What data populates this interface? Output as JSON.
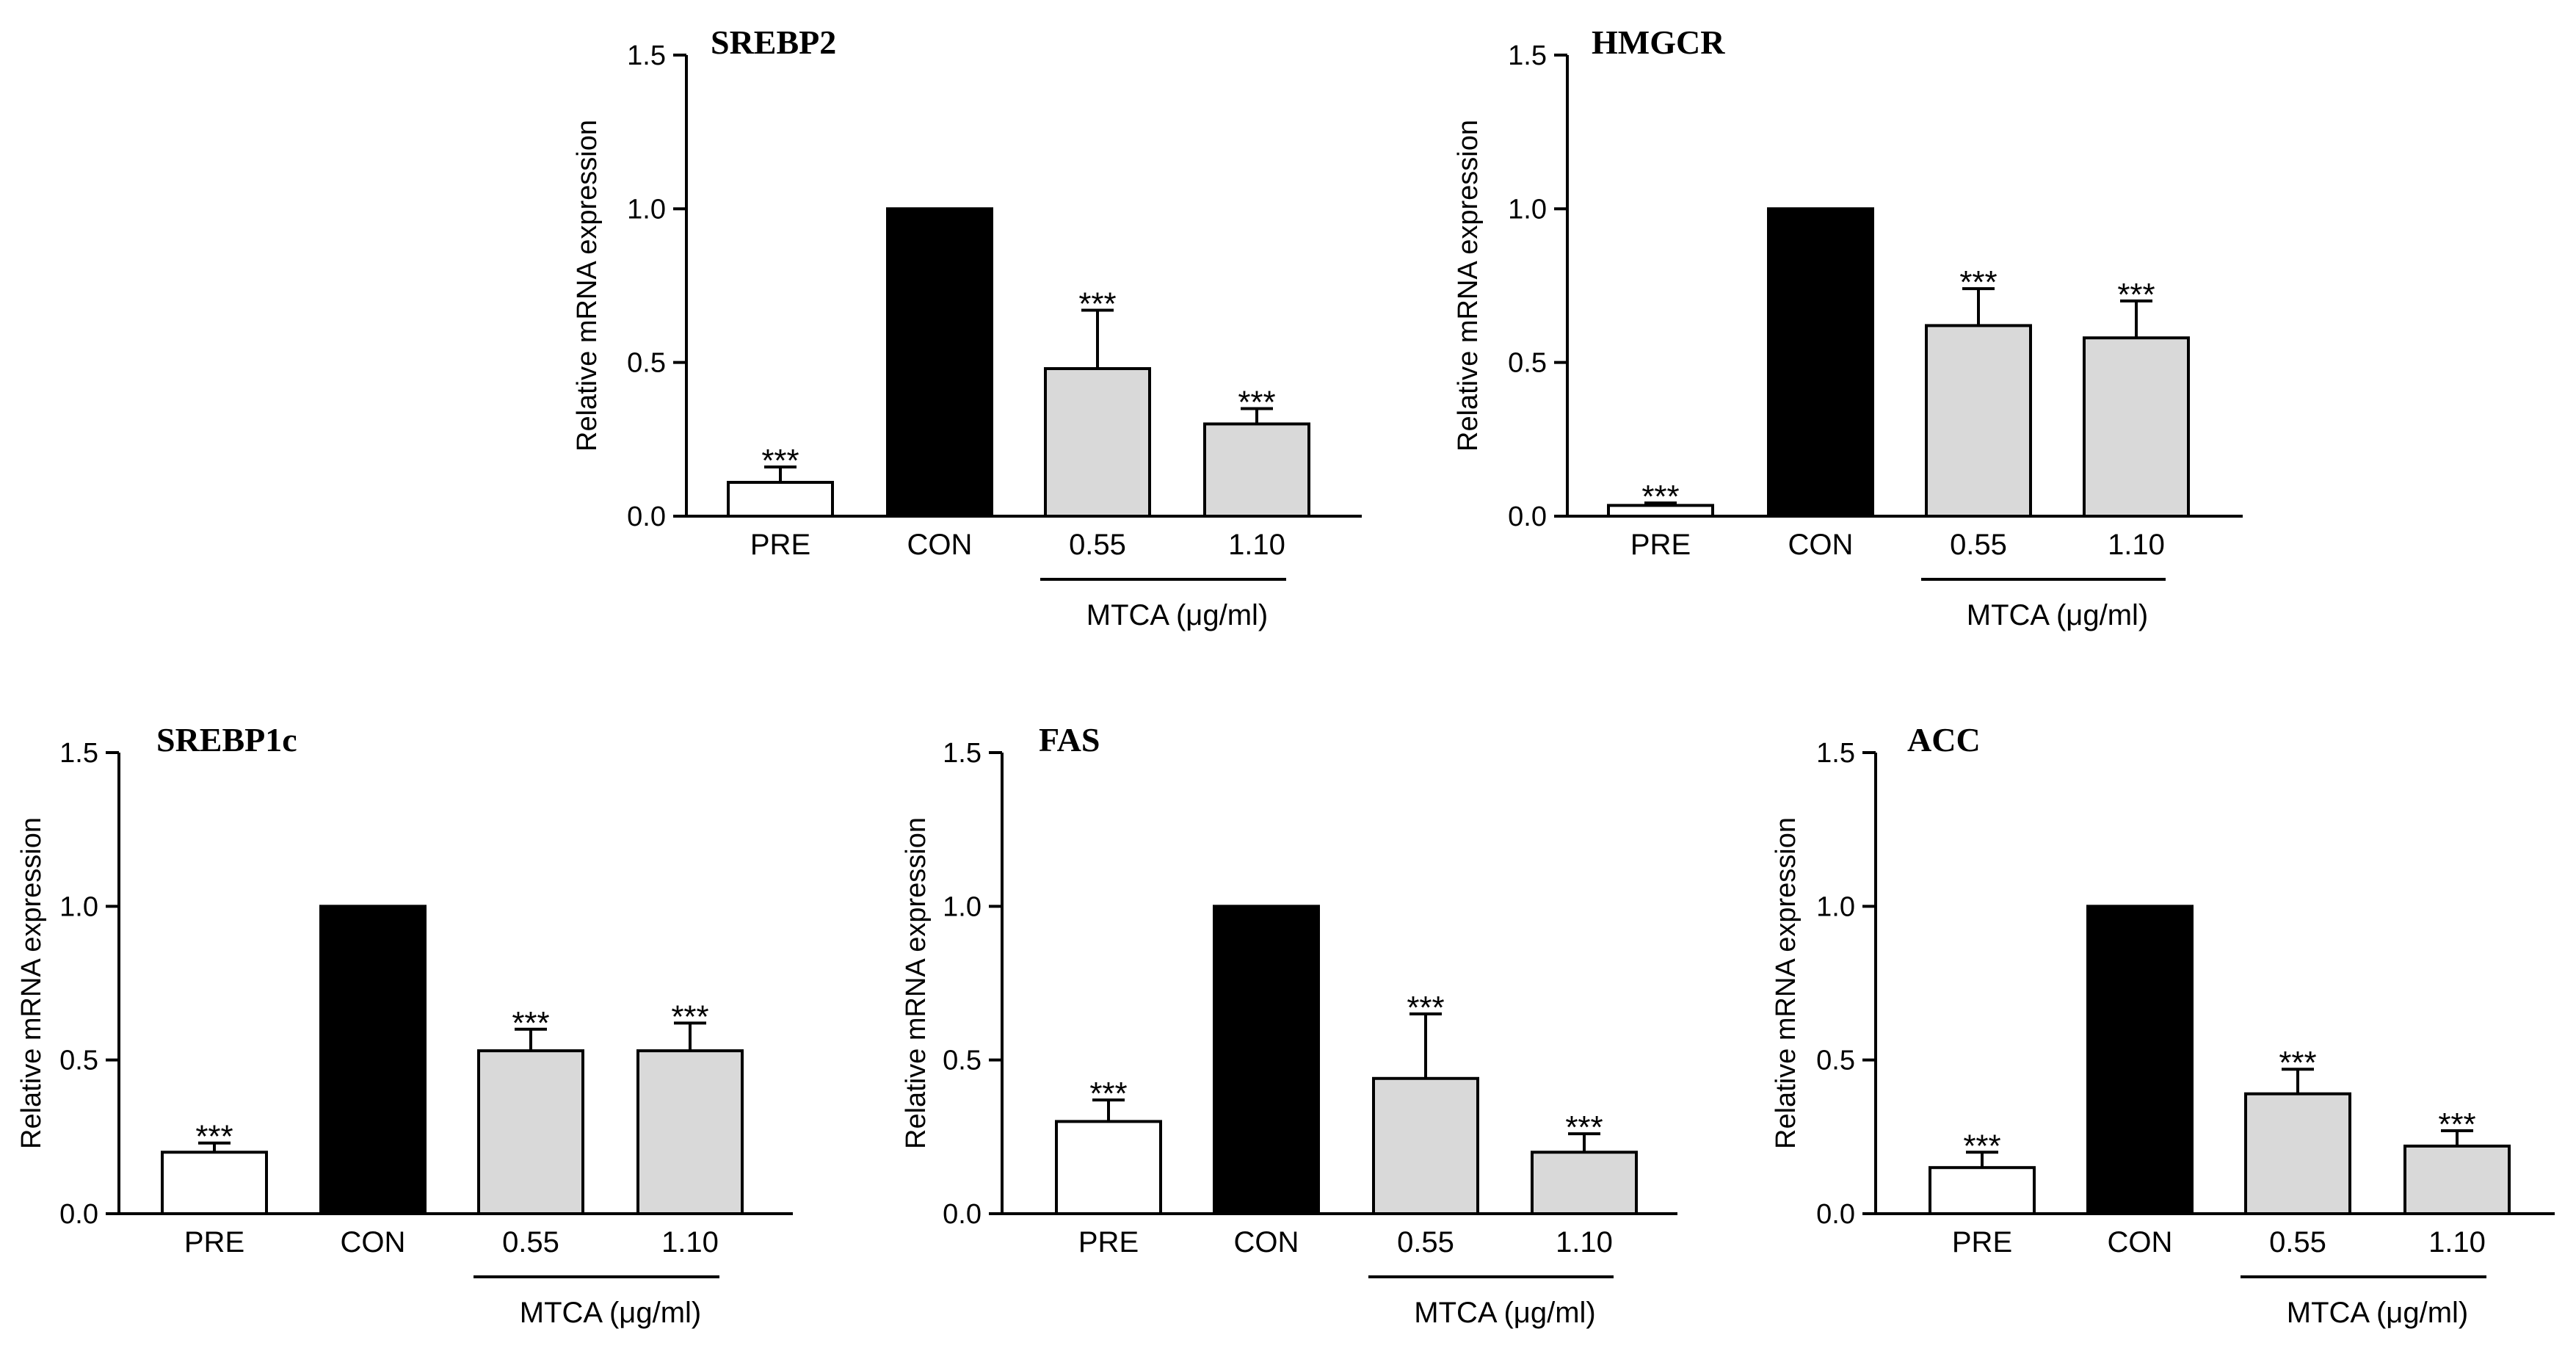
{
  "figure": {
    "y_tick_labels": [
      "0.0",
      "0.5",
      "1.0",
      "1.5"
    ],
    "group_bracket_label": "MTCA (μg/ml)",
    "colors": {
      "PRE": "#ffffff",
      "CON": "#000000",
      "treatment": "#d9d9d9",
      "stroke": "#000000"
    }
  },
  "chart_data": [
    {
      "type": "bar",
      "title": "SREBP2",
      "ylabel": "Relative mRNA expression",
      "xlabel": "",
      "ylim": [
        0,
        1.5
      ],
      "yticks": [
        0,
        0.5,
        1.0,
        1.5
      ],
      "categories": [
        "PRE",
        "CON",
        "0.55",
        "1.10"
      ],
      "values": [
        0.11,
        1.0,
        0.48,
        0.3
      ],
      "errors": [
        0.05,
        0,
        0.19,
        0.05
      ],
      "annotations": [
        "***",
        "",
        "***",
        "***"
      ],
      "group_label": "MTCA (μg/ml)"
    },
    {
      "type": "bar",
      "title": "HMGCR",
      "ylabel": "Relative mRNA expression",
      "xlabel": "",
      "ylim": [
        0,
        1.5
      ],
      "yticks": [
        0,
        0.5,
        1.0,
        1.5
      ],
      "categories": [
        "PRE",
        "CON",
        "0.55",
        "1.10"
      ],
      "values": [
        0.035,
        1.0,
        0.62,
        0.58
      ],
      "errors": [
        0.008,
        0,
        0.12,
        0.12
      ],
      "annotations": [
        "***",
        "",
        "***",
        "***"
      ],
      "group_label": "MTCA (μg/ml)"
    },
    {
      "type": "bar",
      "title": "SREBP1c",
      "ylabel": "Relative mRNA expression",
      "xlabel": "",
      "ylim": [
        0,
        1.5
      ],
      "yticks": [
        0,
        0.5,
        1.0,
        1.5
      ],
      "categories": [
        "PRE",
        "CON",
        "0.55",
        "1.10"
      ],
      "values": [
        0.2,
        1.0,
        0.53,
        0.53
      ],
      "errors": [
        0.03,
        0,
        0.07,
        0.09
      ],
      "annotations": [
        "***",
        "",
        "***",
        "***"
      ],
      "group_label": "MTCA (μg/ml)"
    },
    {
      "type": "bar",
      "title": "FAS",
      "ylabel": "Relative mRNA expression",
      "xlabel": "",
      "ylim": [
        0,
        1.5
      ],
      "yticks": [
        0,
        0.5,
        1.0,
        1.5
      ],
      "categories": [
        "PRE",
        "CON",
        "0.55",
        "1.10"
      ],
      "values": [
        0.3,
        1.0,
        0.44,
        0.2
      ],
      "errors": [
        0.07,
        0,
        0.21,
        0.06
      ],
      "annotations": [
        "***",
        "",
        "***",
        "***"
      ],
      "group_label": "MTCA (μg/ml)"
    },
    {
      "type": "bar",
      "title": "ACC",
      "ylabel": "Relative mRNA expression",
      "xlabel": "",
      "ylim": [
        0,
        1.5
      ],
      "yticks": [
        0,
        0.5,
        1.0,
        1.5
      ],
      "categories": [
        "PRE",
        "CON",
        "0.55",
        "1.10"
      ],
      "values": [
        0.15,
        1.0,
        0.39,
        0.22
      ],
      "errors": [
        0.05,
        0,
        0.08,
        0.05
      ],
      "annotations": [
        "***",
        "",
        "***",
        "***"
      ],
      "group_label": "MTCA (μg/ml)"
    }
  ]
}
